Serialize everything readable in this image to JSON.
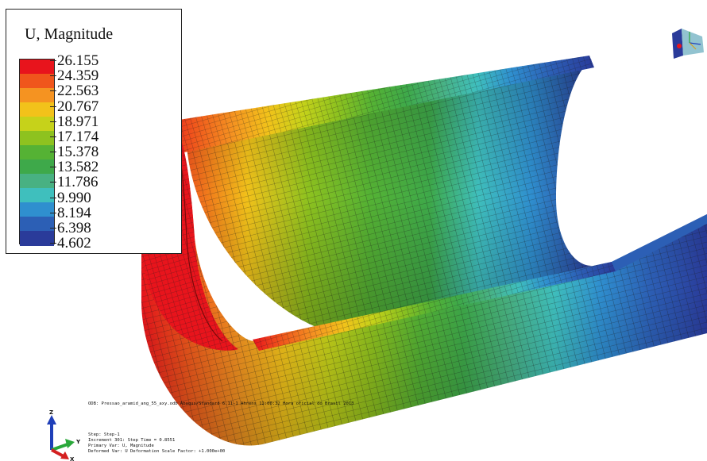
{
  "legend": {
    "title": "U, Magnitude",
    "values": [
      "26.155",
      "24.359",
      "22.563",
      "20.767",
      "18.971",
      "17.174",
      "15.378",
      "13.582",
      "11.786",
      "9.990",
      "8.194",
      "6.398",
      "4.602"
    ],
    "colors": [
      "#e8141c",
      "#f0561c",
      "#f59321",
      "#f2c21a",
      "#c6d21a",
      "#8ec21f",
      "#55b234",
      "#3ea94a",
      "#48b182",
      "#3fbfbd",
      "#2f8fcf",
      "#2c5fb5",
      "#2a3b9a"
    ]
  },
  "info": {
    "odb_line": "ODB: Pressao_aramid_ang_55_axy.odb    Abaqus/Standard 6.11-1    Ahrens 12:00:32 Hora oficial do Brasil 2013",
    "step_line": "Step: Step-1",
    "increment_line": "Increment    301: Step Time =    0.8551",
    "primary_var_line": "Primary Var: U, Magnitude",
    "deformed_var_line": "Deformed Var: U   Deformation Scale Factor: +1.000e+00"
  },
  "triad": {
    "y_label": "Y",
    "z_label": "Z",
    "x_label": "X"
  },
  "colors": {
    "background": "#ffffff",
    "mesh_line": "#1a1a1a"
  }
}
